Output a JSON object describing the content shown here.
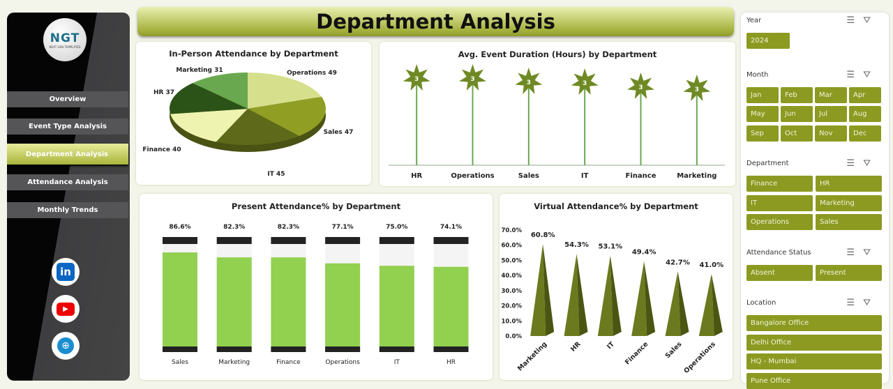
{
  "sidebar": {
    "logo_text": "NGT",
    "logo_sub": "NEXT GEN TEMPLATES",
    "items": [
      {
        "label": "Overview"
      },
      {
        "label": "Event Type Analysis"
      },
      {
        "label": "Department Analysis"
      },
      {
        "label": "Attendance Analysis"
      },
      {
        "label": "Monthly Trends"
      }
    ],
    "active": "Department Analysis",
    "social": [
      "linkedin-icon",
      "youtube-icon",
      "globe-icon"
    ]
  },
  "header": {
    "title": "Department Analysis"
  },
  "charts": {
    "pie": {
      "title": "In-Person Attendance by Department",
      "slices": [
        {
          "label": "Operations",
          "value": 49,
          "color": "#d6e08c"
        },
        {
          "label": "Sales",
          "value": 47,
          "color": "#919e24"
        },
        {
          "label": "IT",
          "value": 45,
          "color": "#5e6a1a"
        },
        {
          "label": "Finance",
          "value": 40,
          "color": "#eef4b0"
        },
        {
          "label": "HR",
          "value": 37,
          "color": "#2b5318"
        },
        {
          "label": "Marketing",
          "value": 31,
          "color": "#6aa84f"
        }
      ]
    },
    "duration": {
      "title": "Avg. Event Duration (Hours) by Department",
      "categories": [
        "HR",
        "Operations",
        "Sales",
        "IT",
        "Finance",
        "Marketing"
      ],
      "values": [
        3,
        3,
        3,
        3,
        3,
        3
      ]
    },
    "present": {
      "title": "Present Attendance% by Department",
      "categories": [
        "Sales",
        "Marketing",
        "Finance",
        "Operations",
        "IT",
        "HR"
      ],
      "values": [
        86.6,
        82.3,
        82.3,
        77.1,
        75.0,
        74.1
      ],
      "labels": [
        "86.6%",
        "82.3%",
        "82.3%",
        "77.1%",
        "75.0%",
        "74.1%"
      ]
    },
    "virtual": {
      "title": "Virtual Attendance% by Department",
      "categories": [
        "Marketing",
        "HR",
        "IT",
        "Finance",
        "Sales",
        "Operations"
      ],
      "values": [
        60.8,
        54.3,
        53.1,
        49.4,
        42.7,
        41.0
      ],
      "labels": [
        "60.8%",
        "54.3%",
        "53.1%",
        "49.4%",
        "42.7%",
        "41.0%"
      ],
      "yticks": [
        "0.0%",
        "10.0%",
        "20.0%",
        "30.0%",
        "40.0%",
        "50.0%",
        "60.0%",
        "70.0%"
      ],
      "ylim": [
        0,
        70
      ]
    }
  },
  "filters": [
    {
      "title": "Year",
      "items": [
        "2024"
      ]
    },
    {
      "title": "Month",
      "items": [
        "Jan",
        "Feb",
        "Mar",
        "Apr",
        "May",
        "Jun",
        "Jul",
        "Aug",
        "Sep",
        "Oct",
        "Nov",
        "Dec"
      ]
    },
    {
      "title": "Department",
      "items": [
        "Finance",
        "HR",
        "IT",
        "Marketing",
        "Operations",
        "Sales"
      ]
    },
    {
      "title": "Attendance Status",
      "items": [
        "Absent",
        "Present"
      ]
    },
    {
      "title": "Location",
      "items": [
        "Bangalore Office",
        "Delhi Office",
        "HQ - Mumbai",
        "Pune Office"
      ]
    }
  ],
  "colors": {
    "accent": "#8c9a22",
    "dark": "#5e6a1a"
  }
}
